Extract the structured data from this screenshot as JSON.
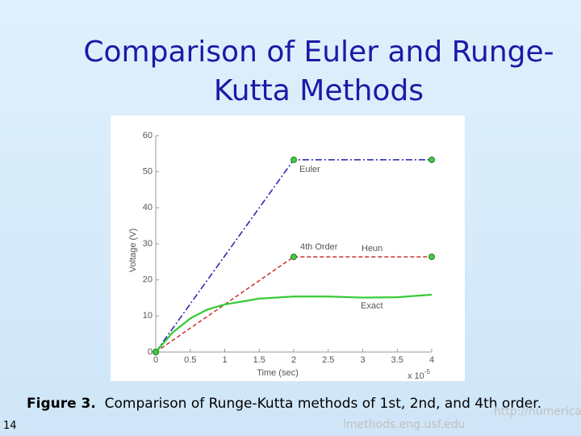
{
  "slide": {
    "title_lines": [
      "Comparison of Euler and Runge-",
      "Kutta Methods"
    ],
    "caption_label": "Figure 3.",
    "caption": "Comparison of Runge-Kutta methods of 1st, 2nd, and 4th order.",
    "page_number": 14,
    "url_parts": [
      "http://numerica",
      "lmethods.eng.usf.edu"
    ]
  },
  "chart_data": {
    "type": "line",
    "x_label": "Time (sec)",
    "y_label": "Voltage (V)",
    "x_multiplier": {
      "base": "x 10",
      "exponent": "-5"
    },
    "xlim": [
      0,
      4
    ],
    "ylim": [
      0,
      60
    ],
    "xticks": [
      0,
      0.5,
      1,
      1.5,
      2,
      2.5,
      3,
      3.5,
      4
    ],
    "yticks": [
      0,
      10,
      20,
      30,
      40,
      50,
      60
    ],
    "annotations": [
      "Euler",
      "4th Order",
      "Heun",
      "Exact"
    ],
    "series": [
      {
        "name": "Euler",
        "color": "#1f1fb0",
        "markers": true,
        "x": [
          0,
          2,
          4
        ],
        "values": [
          0,
          53.3,
          53.3
        ]
      },
      {
        "name": "Heun",
        "color": "#c83232",
        "markers": true,
        "x": [
          0,
          2,
          4
        ],
        "values": [
          0,
          26.4,
          26.4
        ]
      },
      {
        "name": "Exact",
        "color": "#33cc33",
        "markers": false,
        "x": [
          0,
          0.25,
          0.5,
          0.75,
          1,
          1.5,
          2,
          2.5,
          3,
          3.5,
          4
        ],
        "values": [
          0,
          5.5,
          9.3,
          11.8,
          13.2,
          14.8,
          15.4,
          15.4,
          15.1,
          15.2,
          15.9
        ]
      }
    ]
  }
}
